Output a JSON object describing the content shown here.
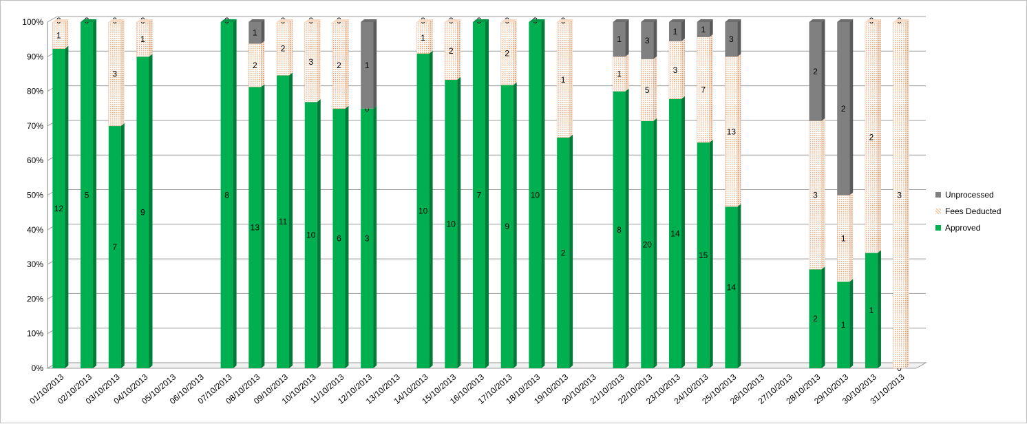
{
  "chart_data": {
    "type": "bar",
    "stacked": "percent",
    "three_d": true,
    "title": "",
    "xlabel": "",
    "ylabel": "",
    "ylim": [
      0,
      100
    ],
    "yticks": [
      "0%",
      "10%",
      "20%",
      "30%",
      "40%",
      "50%",
      "60%",
      "70%",
      "80%",
      "90%",
      "100%"
    ],
    "grid": true,
    "legend_position": "right",
    "categories": [
      "01/10/2013",
      "02/10/2013",
      "03/10/2013",
      "04/10/2013",
      "05/10/2013",
      "06/10/2013",
      "07/10/2013",
      "08/10/2013",
      "09/10/2013",
      "10/10/2013",
      "11/10/2013",
      "12/10/2013",
      "13/10/2013",
      "14/10/2013",
      "15/10/2013",
      "16/10/2013",
      "17/10/2013",
      "18/10/2013",
      "19/10/2013",
      "20/10/2013",
      "21/10/2013",
      "22/10/2013",
      "23/10/2013",
      "24/10/2013",
      "25/10/2013",
      "26/10/2013",
      "27/10/2013",
      "28/10/2013",
      "29/10/2013",
      "30/10/2013",
      "31/10/2013"
    ],
    "series": [
      {
        "name": "Approved",
        "color": "#00b050",
        "values": [
          12,
          5,
          7,
          9,
          null,
          null,
          8,
          13,
          11,
          10,
          6,
          3,
          null,
          10,
          10,
          7,
          9,
          10,
          2,
          null,
          8,
          20,
          14,
          15,
          14,
          null,
          null,
          2,
          1,
          1,
          0
        ]
      },
      {
        "name": "Fees Deducted",
        "color": "#fbd5b5",
        "values": [
          1,
          0,
          3,
          1,
          null,
          null,
          0,
          2,
          2,
          3,
          2,
          0,
          null,
          1,
          2,
          0,
          2,
          0,
          1,
          null,
          1,
          5,
          3,
          7,
          13,
          null,
          null,
          3,
          1,
          2,
          3
        ]
      },
      {
        "name": "Unprocessed",
        "color": "#808080",
        "values": [
          0,
          0,
          0,
          0,
          null,
          null,
          0,
          1,
          0,
          0,
          0,
          1,
          null,
          0,
          0,
          0,
          0,
          0,
          0,
          null,
          1,
          3,
          1,
          1,
          3,
          null,
          null,
          2,
          2,
          0,
          0
        ]
      }
    ]
  }
}
